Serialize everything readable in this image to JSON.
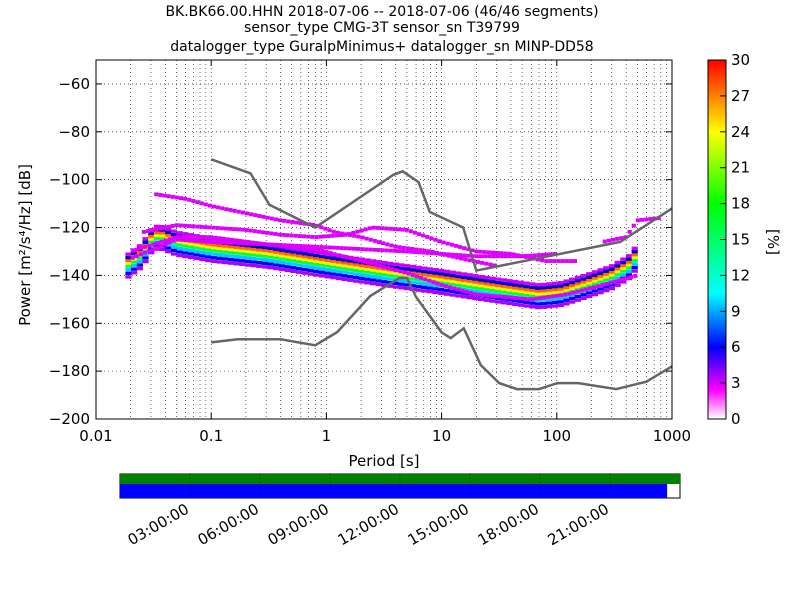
{
  "chart_data": {
    "type": "heatmap",
    "title_lines": [
      "BK.BK66.00.HHN   2018-07-06 -- 2018-07-06  (46/46 segments)",
      "sensor_type CMG-3T sensor_sn T39799",
      "datalogger_type GuralpMinimus+ datalogger_sn MINP-DD58"
    ],
    "xlabel": "Period [s]",
    "ylabel": "Power [m²/s⁴/Hz] [dB]",
    "x_scale": "log",
    "xlim": [
      0.01,
      1000
    ],
    "ylim": [
      -200,
      -50
    ],
    "x_ticks": [
      {
        "value": 0.01,
        "label": "0.01"
      },
      {
        "value": 0.1,
        "label": "0.1"
      },
      {
        "value": 1,
        "label": "1"
      },
      {
        "value": 10,
        "label": "10"
      },
      {
        "value": 100,
        "label": "100"
      },
      {
        "value": 1000,
        "label": "1000"
      }
    ],
    "y_ticks": [
      {
        "value": -60,
        "label": "−60"
      },
      {
        "value": -80,
        "label": "−80"
      },
      {
        "value": -100,
        "label": "−100"
      },
      {
        "value": -120,
        "label": "−120"
      },
      {
        "value": -140,
        "label": "−140"
      },
      {
        "value": -160,
        "label": "−160"
      },
      {
        "value": -180,
        "label": "−180"
      },
      {
        "value": -200,
        "label": "−200"
      }
    ],
    "grid": true,
    "colorbar": {
      "label": "[%]",
      "range": [
        0,
        30
      ],
      "ticks": [
        "0",
        "3",
        "6",
        "9",
        "12",
        "15",
        "18",
        "21",
        "24",
        "27",
        "30"
      ],
      "colormap": "pqlx"
    },
    "noise_models": [
      {
        "role": "high",
        "color": "#666666",
        "points": [
          [
            0.1,
            -91.5
          ],
          [
            0.22,
            -97.4
          ],
          [
            0.32,
            -110.5
          ],
          [
            0.8,
            -120
          ],
          [
            3.8,
            -98
          ],
          [
            4.6,
            -96.5
          ],
          [
            6.3,
            -101
          ],
          [
            7.9,
            -113.5
          ],
          [
            15.4,
            -120
          ],
          [
            20,
            -138
          ],
          [
            354.8,
            -126
          ],
          [
            1000,
            -112
          ]
        ]
      },
      {
        "role": "low",
        "color": "#666666",
        "points": [
          [
            0.1,
            -168
          ],
          [
            0.17,
            -166.7
          ],
          [
            0.4,
            -166.7
          ],
          [
            0.8,
            -169.2
          ],
          [
            1.24,
            -163.7
          ],
          [
            2.4,
            -148.6
          ],
          [
            4.3,
            -141.1
          ],
          [
            5.0,
            -141.1
          ],
          [
            6.0,
            -149
          ],
          [
            10.0,
            -163.8
          ],
          [
            12.0,
            -166.2
          ],
          [
            15.6,
            -162.1
          ],
          [
            21.9,
            -177.5
          ],
          [
            31.6,
            -185
          ],
          [
            45,
            -187.5
          ],
          [
            70,
            -187.5
          ],
          [
            101,
            -185
          ],
          [
            154,
            -185
          ],
          [
            328,
            -187.5
          ],
          [
            600,
            -184.4
          ],
          [
            1000,
            -178
          ]
        ]
      }
    ],
    "psd_mode": {
      "points": [
        [
          0.018,
          -137
        ],
        [
          0.025,
          -132
        ],
        [
          0.03,
          -126
        ],
        [
          0.035,
          -124
        ],
        [
          0.05,
          -127
        ],
        [
          0.1,
          -129.5
        ],
        [
          0.3,
          -132
        ],
        [
          1,
          -136
        ],
        [
          3,
          -139.5
        ],
        [
          10,
          -143
        ],
        [
          30,
          -146.5
        ],
        [
          70,
          -149
        ],
        [
          110,
          -148
        ],
        [
          200,
          -144
        ],
        [
          300,
          -141
        ],
        [
          450,
          -136
        ],
        [
          500,
          -131
        ]
      ]
    },
    "psd_outlier_curves": [
      {
        "points": [
          [
            0.032,
            -106
          ],
          [
            0.06,
            -108
          ],
          [
            0.1,
            -111
          ],
          [
            0.2,
            -114
          ],
          [
            0.4,
            -117
          ],
          [
            0.8,
            -119
          ],
          [
            1.2,
            -122
          ],
          [
            2,
            -124
          ],
          [
            4,
            -128
          ],
          [
            8,
            -130
          ],
          [
            15,
            -133
          ],
          [
            30,
            -136
          ]
        ]
      },
      {
        "points": [
          [
            0.025,
            -122
          ],
          [
            0.05,
            -119
          ],
          [
            0.1,
            -120
          ],
          [
            0.2,
            -121
          ],
          [
            0.4,
            -123
          ],
          [
            0.8,
            -124
          ],
          [
            1.5,
            -123
          ],
          [
            2.5,
            -120
          ],
          [
            5,
            -121
          ],
          [
            10,
            -126
          ],
          [
            20,
            -130
          ],
          [
            40,
            -131
          ],
          [
            80,
            -134
          ],
          [
            150,
            -134
          ]
        ]
      },
      {
        "points": [
          [
            0.02,
            -130
          ],
          [
            0.05,
            -124
          ],
          [
            0.1,
            -124
          ],
          [
            0.3,
            -127
          ],
          [
            0.8,
            -129
          ],
          [
            2,
            -134
          ],
          [
            5,
            -139
          ],
          [
            10,
            -144
          ],
          [
            20,
            -148
          ],
          [
            60,
            -150
          ],
          [
            120,
            -148
          ],
          [
            250,
            -144
          ],
          [
            500,
            -140
          ]
        ]
      },
      {
        "points": [
          [
            0.02,
            -133
          ],
          [
            0.05,
            -125
          ],
          [
            0.1,
            -126
          ],
          [
            0.3,
            -127
          ],
          [
            0.8,
            -128
          ],
          [
            2,
            -129
          ],
          [
            5,
            -130
          ],
          [
            10,
            -131
          ],
          [
            20,
            -132
          ],
          [
            50,
            -132
          ],
          [
            100,
            -131
          ]
        ]
      },
      {
        "points": [
          [
            250,
            -126
          ],
          [
            400,
            -124
          ],
          [
            500,
            -117
          ],
          [
            800,
            -116
          ]
        ]
      }
    ],
    "data_availability": {
      "time_labels": [
        "03:00:00",
        "06:00:00",
        "09:00:00",
        "12:00:00",
        "15:00:00",
        "18:00:00",
        "21:00:00"
      ],
      "coverage_fraction": 0.977,
      "bar_colors": {
        "used": "#008000",
        "available": "#0000ff"
      }
    }
  }
}
